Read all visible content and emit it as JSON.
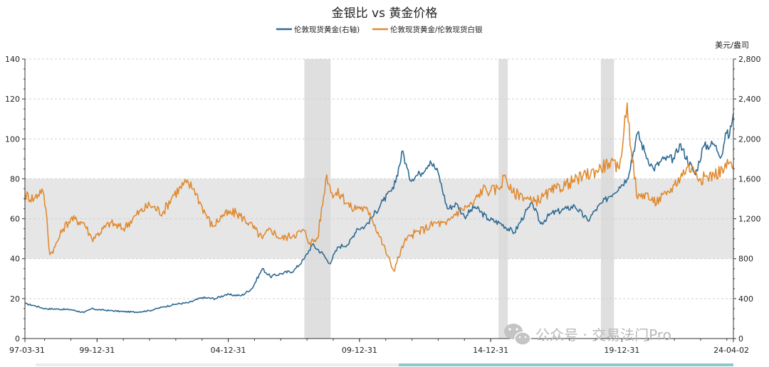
{
  "chart_data": {
    "type": "line",
    "title": "金银比 vs 黄金价格",
    "right_axis_unit": "美元/盎司",
    "x_ticks": [
      "97-03-31",
      "99-12-31",
      "04-12-31",
      "09-12-31",
      "14-12-31",
      "19-12-31",
      "24-04-02"
    ],
    "left_axis": {
      "min": 0,
      "max": 140,
      "ticks": [
        "0",
        "20",
        "40",
        "60",
        "80",
        "100",
        "120",
        "140"
      ]
    },
    "right_axis": {
      "min": 0,
      "max": 2800,
      "ticks": [
        "0",
        "400",
        "800",
        "1,200",
        "1,600",
        "2,000",
        "2,400",
        "2,800"
      ]
    },
    "x_range": [
      1997.25,
      2024.25
    ],
    "highlight_band_left_axis": [
      40,
      80
    ],
    "recession_periods": [
      [
        2007.92,
        2009.5
      ],
      [
        2020.1,
        2020.5
      ]
    ],
    "recession_marks": [
      [
        2007.9,
        2008.9
      ],
      [
        2015.3,
        2015.65
      ],
      [
        2019.2,
        2019.7
      ]
    ],
    "series": [
      {
        "name": "伦敦现货黄金(右轴)",
        "axis": "right",
        "color": "#2e6a93",
        "points": [
          [
            1997.25,
            350
          ],
          [
            1997.6,
            330
          ],
          [
            1998.0,
            300
          ],
          [
            1998.5,
            295
          ],
          [
            1999.0,
            290
          ],
          [
            1999.5,
            260
          ],
          [
            1999.8,
            300
          ],
          [
            2000.0,
            290
          ],
          [
            2000.5,
            280
          ],
          [
            2001.0,
            270
          ],
          [
            2001.5,
            265
          ],
          [
            2002.0,
            280
          ],
          [
            2002.5,
            315
          ],
          [
            2003.0,
            345
          ],
          [
            2003.5,
            360
          ],
          [
            2004.0,
            410
          ],
          [
            2004.5,
            400
          ],
          [
            2004.9,
            440
          ],
          [
            2005.5,
            430
          ],
          [
            2005.9,
            500
          ],
          [
            2006.3,
            700
          ],
          [
            2006.6,
            620
          ],
          [
            2007.0,
            650
          ],
          [
            2007.5,
            680
          ],
          [
            2007.9,
            800
          ],
          [
            2008.2,
            940
          ],
          [
            2008.6,
            850
          ],
          [
            2008.85,
            750
          ],
          [
            2009.2,
            920
          ],
          [
            2009.6,
            950
          ],
          [
            2009.9,
            1100
          ],
          [
            2010.2,
            1120
          ],
          [
            2010.5,
            1220
          ],
          [
            2010.9,
            1380
          ],
          [
            2011.3,
            1500
          ],
          [
            2011.65,
            1880
          ],
          [
            2011.9,
            1600
          ],
          [
            2012.3,
            1650
          ],
          [
            2012.7,
            1780
          ],
          [
            2013.0,
            1660
          ],
          [
            2013.35,
            1300
          ],
          [
            2013.7,
            1350
          ],
          [
            2014.0,
            1220
          ],
          [
            2014.4,
            1320
          ],
          [
            2014.9,
            1200
          ],
          [
            2015.4,
            1150
          ],
          [
            2015.9,
            1060
          ],
          [
            2016.3,
            1250
          ],
          [
            2016.6,
            1350
          ],
          [
            2016.9,
            1150
          ],
          [
            2017.3,
            1250
          ],
          [
            2017.9,
            1300
          ],
          [
            2018.2,
            1330
          ],
          [
            2018.7,
            1180
          ],
          [
            2019.0,
            1290
          ],
          [
            2019.5,
            1420
          ],
          [
            2019.9,
            1520
          ],
          [
            2020.2,
            1600
          ],
          [
            2020.6,
            2060
          ],
          [
            2020.9,
            1850
          ],
          [
            2021.2,
            1700
          ],
          [
            2021.6,
            1800
          ],
          [
            2022.0,
            1800
          ],
          [
            2022.2,
            1950
          ],
          [
            2022.8,
            1640
          ],
          [
            2023.1,
            1920
          ],
          [
            2023.5,
            1950
          ],
          [
            2023.8,
            1830
          ],
          [
            2023.95,
            2060
          ],
          [
            2024.1,
            2030
          ],
          [
            2024.25,
            2260
          ]
        ]
      },
      {
        "name": "伦敦现货黄金/伦敦现货白银",
        "axis": "left",
        "color": "#e08a30",
        "points": [
          [
            1997.25,
            72
          ],
          [
            1997.6,
            70
          ],
          [
            1997.9,
            75
          ],
          [
            1998.05,
            65
          ],
          [
            1998.2,
            42
          ],
          [
            1998.4,
            46
          ],
          [
            1998.7,
            55
          ],
          [
            1999.0,
            60
          ],
          [
            1999.5,
            58
          ],
          [
            1999.8,
            50
          ],
          [
            2000.0,
            52
          ],
          [
            2000.5,
            58
          ],
          [
            2001.0,
            55
          ],
          [
            2001.5,
            62
          ],
          [
            2002.0,
            67
          ],
          [
            2002.5,
            63
          ],
          [
            2002.9,
            72
          ],
          [
            2003.4,
            78
          ],
          [
            2003.7,
            75
          ],
          [
            2004.0,
            66
          ],
          [
            2004.4,
            56
          ],
          [
            2004.8,
            62
          ],
          [
            2005.3,
            63
          ],
          [
            2005.8,
            58
          ],
          [
            2006.3,
            50
          ],
          [
            2006.6,
            55
          ],
          [
            2007.0,
            50
          ],
          [
            2007.5,
            52
          ],
          [
            2007.9,
            54
          ],
          [
            2008.1,
            48
          ],
          [
            2008.4,
            50
          ],
          [
            2008.75,
            82
          ],
          [
            2008.95,
            73
          ],
          [
            2009.3,
            72
          ],
          [
            2009.7,
            65
          ],
          [
            2010.0,
            66
          ],
          [
            2010.4,
            63
          ],
          [
            2010.9,
            47
          ],
          [
            2011.3,
            34
          ],
          [
            2011.7,
            48
          ],
          [
            2012.0,
            52
          ],
          [
            2012.5,
            55
          ],
          [
            2012.9,
            58
          ],
          [
            2013.3,
            57
          ],
          [
            2013.6,
            62
          ],
          [
            2013.9,
            65
          ],
          [
            2014.3,
            67
          ],
          [
            2014.7,
            75
          ],
          [
            2015.0,
            74
          ],
          [
            2015.3,
            75
          ],
          [
            2015.55,
            82
          ],
          [
            2015.8,
            73
          ],
          [
            2016.2,
            72
          ],
          [
            2016.6,
            68
          ],
          [
            2017.0,
            71
          ],
          [
            2017.5,
            75
          ],
          [
            2018.0,
            78
          ],
          [
            2018.5,
            81
          ],
          [
            2019.0,
            84
          ],
          [
            2019.5,
            88
          ],
          [
            2019.9,
            85
          ],
          [
            2020.2,
            118
          ],
          [
            2020.35,
            95
          ],
          [
            2020.6,
            70
          ],
          [
            2020.9,
            73
          ],
          [
            2021.2,
            68
          ],
          [
            2021.7,
            72
          ],
          [
            2022.0,
            77
          ],
          [
            2022.5,
            86
          ],
          [
            2022.8,
            84
          ],
          [
            2023.0,
            80
          ],
          [
            2023.5,
            82
          ],
          [
            2023.9,
            85
          ],
          [
            2024.1,
            88
          ],
          [
            2024.25,
            86
          ]
        ]
      }
    ]
  },
  "watermark": "公众号 · 交易法门Pro"
}
